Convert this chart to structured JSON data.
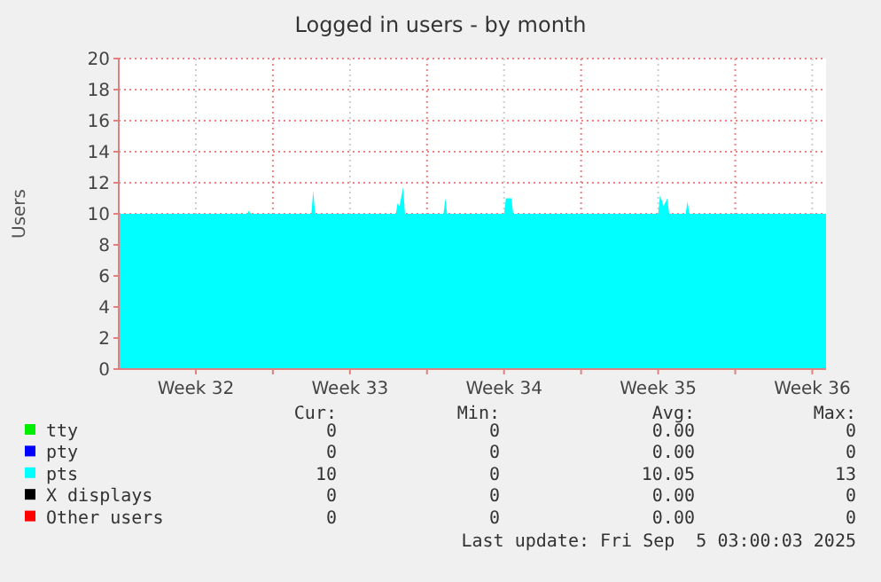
{
  "chart_data": {
    "type": "area",
    "title": "Logged in users - by month",
    "ylabel": "Users",
    "xlim": [
      "2025-08-04T00:00",
      "2025-09-05T03:00"
    ],
    "xticks": [
      {
        "value": "2025-08-07T12:00",
        "label": "Week 32"
      },
      {
        "value": "2025-08-11T00:00",
        "label": null
      },
      {
        "value": "2025-08-14T12:00",
        "label": "Week 33"
      },
      {
        "value": "2025-08-18T00:00",
        "label": null
      },
      {
        "value": "2025-08-21T12:00",
        "label": "Week 34"
      },
      {
        "value": "2025-08-25T00:00",
        "label": null
      },
      {
        "value": "2025-08-28T12:00",
        "label": "Week 35"
      },
      {
        "value": "2025-09-01T00:00",
        "label": null
      },
      {
        "value": "2025-09-04T12:00",
        "label": "Week 36"
      }
    ],
    "ylim": [
      0,
      20
    ],
    "yticks": [
      0,
      2,
      4,
      6,
      8,
      10,
      12,
      14,
      16,
      18,
      20
    ],
    "grid": true,
    "legend": "bottom",
    "series": [
      {
        "name": "tty",
        "color": "#00ee00"
      },
      {
        "name": "pty",
        "color": "#0000ff"
      },
      {
        "name": "pts",
        "color": "#00ffff",
        "x": [
          "2025-08-04T00:00",
          "2025-08-09T20:00",
          "2025-08-09T22:00",
          "2025-08-10T00:00",
          "2025-08-12T18:00",
          "2025-08-12T20:00",
          "2025-08-12T22:00",
          "2025-08-16T14:00",
          "2025-08-16T16:00",
          "2025-08-16T18:00",
          "2025-08-16T22:00",
          "2025-08-17T00:00",
          "2025-08-18T18:00",
          "2025-08-18T20:00",
          "2025-08-18T22:00",
          "2025-08-21T12:00",
          "2025-08-21T14:00",
          "2025-08-21T20:00",
          "2025-08-21T22:00",
          "2025-08-28T12:00",
          "2025-08-28T14:00",
          "2025-08-28T18:00",
          "2025-08-28T22:00",
          "2025-08-29T00:00",
          "2025-08-29T18:00",
          "2025-08-29T20:00",
          "2025-08-29T22:00",
          "2025-09-05T03:00"
        ],
        "values": [
          10,
          10,
          10.2,
          10,
          10,
          11.5,
          10,
          10,
          10.7,
          10.5,
          11.7,
          10,
          10,
          11,
          10,
          10,
          11,
          11,
          10,
          10,
          11.2,
          10.5,
          11,
          10,
          10,
          10.8,
          10,
          10
        ]
      },
      {
        "name": "X displays",
        "color": "#000000"
      },
      {
        "name": "Other users",
        "color": "#ff0000"
      }
    ],
    "annotations": [
      "Cur:",
      "Min:",
      "Avg:",
      "Max:",
      "0",
      "0",
      "0.00",
      "0",
      "0",
      "0",
      "0.00",
      "0",
      "10",
      "0",
      "10.05",
      "13",
      "0",
      "0",
      "0.00",
      "0",
      "0",
      "0",
      "0.00",
      "0",
      "Last update: Fri Sep  5 03:00:03 2025"
    ]
  }
}
